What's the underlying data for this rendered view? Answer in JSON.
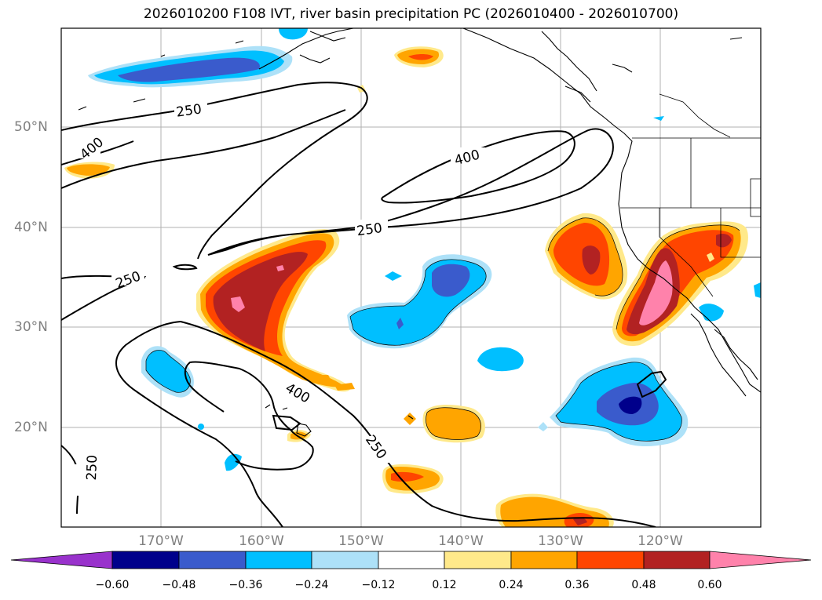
{
  "title": "2026010200 F108 IVT, river basin precipitation PC (2026010400 - 2026010700)",
  "map": {
    "lat_labels": [
      "50°N",
      "40°N",
      "30°N",
      "20°N"
    ],
    "lon_labels": [
      "170°W",
      "160°W",
      "150°W",
      "140°W",
      "130°W",
      "120°W"
    ],
    "contour_labels": [
      "250",
      "250",
      "250",
      "250",
      "250",
      "400",
      "400",
      "400"
    ]
  },
  "colorbar": {
    "ticks": [
      "−0.60",
      "−0.48",
      "−0.36",
      "−0.24",
      "−0.12",
      "0.12",
      "0.24",
      "0.36",
      "0.48",
      "0.60"
    ],
    "colors": [
      "#9932CC",
      "#00008B",
      "#3A5BCC",
      "#00BFFF",
      "#ADE1F8",
      "#FFFFFF",
      "#FFE98A",
      "#FFA500",
      "#FF4500",
      "#B22222",
      "#FF82AB"
    ]
  }
}
